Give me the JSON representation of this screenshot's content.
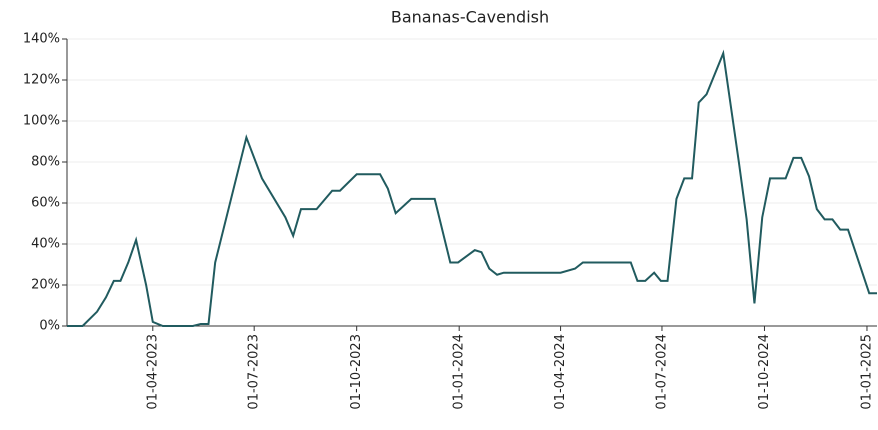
{
  "chart_data": {
    "type": "line",
    "title": "Bananas-Cavendish",
    "x": [
      "2023-01-14",
      "2023-01-28",
      "2023-02-10",
      "2023-02-18",
      "2023-02-25",
      "2023-03-03",
      "2023-03-10",
      "2023-03-17",
      "2023-03-26",
      "2023-04-01",
      "2023-04-10",
      "2023-05-07",
      "2023-05-14",
      "2023-05-21",
      "2023-05-27",
      "2023-06-24",
      "2023-07-08",
      "2023-07-29",
      "2023-08-05",
      "2023-08-12",
      "2023-08-26",
      "2023-09-09",
      "2023-09-16",
      "2023-10-01",
      "2023-10-22",
      "2023-10-29",
      "2023-11-05",
      "2023-11-19",
      "2023-12-10",
      "2023-12-24",
      "2023-12-31",
      "2024-01-15",
      "2024-01-21",
      "2024-01-28",
      "2024-02-04",
      "2024-02-10",
      "2024-04-01",
      "2024-04-14",
      "2024-04-21",
      "2024-06-03",
      "2024-06-09",
      "2024-06-16",
      "2024-06-24",
      "2024-06-30",
      "2024-07-06",
      "2024-07-14",
      "2024-07-21",
      "2024-07-28",
      "2024-08-03",
      "2024-08-10",
      "2024-08-25",
      "2024-09-08",
      "2024-09-15",
      "2024-09-22",
      "2024-09-29",
      "2024-10-06",
      "2024-10-20",
      "2024-10-27",
      "2024-11-03",
      "2024-11-10",
      "2024-11-17",
      "2024-11-24",
      "2024-12-01",
      "2024-12-08",
      "2024-12-15",
      "2025-01-03",
      "2025-01-10"
    ],
    "series": [
      {
        "name": "Bananas-Cavendish",
        "color": "#215b5f",
        "values": [
          0,
          0,
          7,
          14,
          22,
          22,
          31,
          42,
          20,
          2,
          0,
          0,
          1,
          1,
          31,
          92,
          72,
          53,
          44,
          57,
          57,
          66,
          66,
          74,
          74,
          67,
          55,
          62,
          62,
          31,
          31,
          37,
          36,
          28,
          25,
          26,
          26,
          28,
          31,
          31,
          22,
          22,
          26,
          22,
          22,
          62,
          72,
          72,
          109,
          113,
          133,
          80,
          52,
          11,
          53,
          72,
          72,
          82,
          82,
          73,
          57,
          52,
          52,
          47,
          47,
          16,
          16
        ]
      }
    ],
    "xlim": [
      "2023-01-14",
      "2025-01-10"
    ],
    "xticks": [
      {
        "value": "2023-04-01",
        "label": "01-04-2023"
      },
      {
        "value": "2023-07-01",
        "label": "01-07-2023"
      },
      {
        "value": "2023-10-01",
        "label": "01-10-2023"
      },
      {
        "value": "2024-01-01",
        "label": "01-01-2024"
      },
      {
        "value": "2024-04-01",
        "label": "01-04-2024"
      },
      {
        "value": "2024-07-01",
        "label": "01-07-2024"
      },
      {
        "value": "2024-10-01",
        "label": "01-10-2024"
      },
      {
        "value": "2025-01-01",
        "label": "01-01-2025"
      }
    ],
    "ylim": [
      0,
      140
    ],
    "yticks": [
      {
        "value": 0,
        "label": "0%"
      },
      {
        "value": 20,
        "label": "20%"
      },
      {
        "value": 40,
        "label": "40%"
      },
      {
        "value": 60,
        "label": "60%"
      },
      {
        "value": 80,
        "label": "80%"
      },
      {
        "value": 100,
        "label": "100%"
      },
      {
        "value": 120,
        "label": "120%"
      },
      {
        "value": 140,
        "label": "140%"
      }
    ],
    "grid": true
  }
}
